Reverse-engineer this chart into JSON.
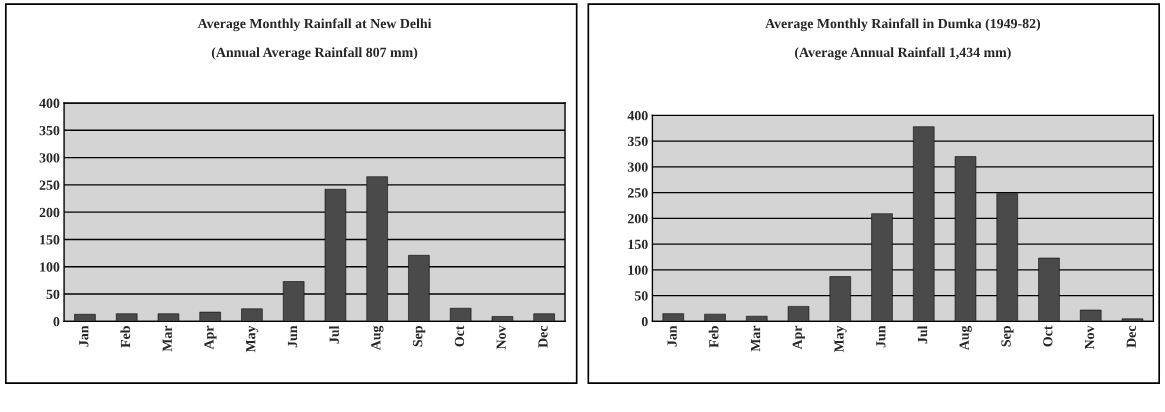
{
  "chart_data": [
    {
      "type": "bar",
      "title": "Average Monthly Rainfall at New Delhi",
      "subtitle": "(Annual Average Rainfall 807 mm)",
      "categories": [
        "Jan",
        "Feb",
        "Mar",
        "Apr",
        "May",
        "Jun",
        "Jul",
        "Aug",
        "Sep",
        "Oct",
        "Nov",
        "Dec"
      ],
      "series": [
        {
          "color": "#4a4a4a",
          "values": [
            13,
            14,
            14,
            17,
            23,
            73,
            242,
            265,
            121,
            24,
            9,
            14
          ]
        }
      ],
      "ylim": [
        0,
        400
      ],
      "yticks": [
        0,
        50,
        100,
        150,
        200,
        250,
        300,
        350,
        400
      ],
      "grid": "y",
      "legend": false
    },
    {
      "type": "bar",
      "title": "Average Monthly Rainfall in Dumka (1949-82)",
      "subtitle": "(Average Annual Rainfall 1,434 mm)",
      "categories": [
        "Jan",
        "Feb",
        "Mar",
        "Apr",
        "May",
        "Jun",
        "Jul",
        "Aug",
        "Sep",
        "Oct",
        "Nov",
        "Dec"
      ],
      "series": [
        {
          "color": "#4a4a4a",
          "values": [
            15,
            14,
            10,
            29,
            87,
            209,
            378,
            320,
            248,
            123,
            22,
            5
          ]
        }
      ],
      "ylim": [
        0,
        400
      ],
      "yticks": [
        0,
        50,
        100,
        150,
        200,
        250,
        300,
        350,
        400
      ],
      "grid": "y",
      "legend": false
    }
  ]
}
